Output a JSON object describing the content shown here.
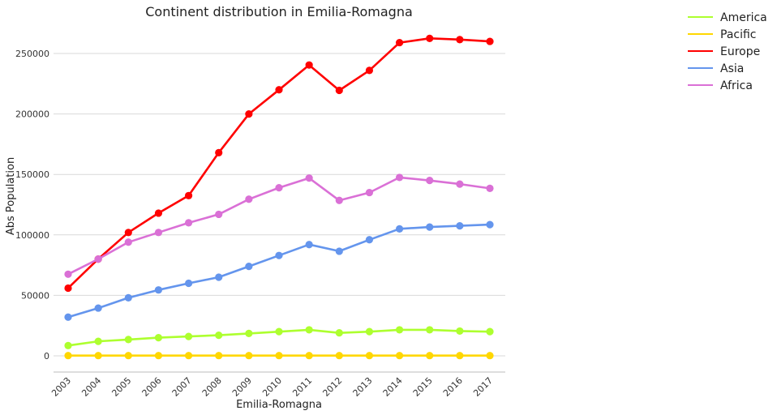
{
  "chart_data": {
    "type": "line",
    "title": "Continent distribution in Emilia-Romagna",
    "xlabel": "Emilia-Romagna",
    "ylabel": "Abs Population",
    "x": [
      "2003",
      "2004",
      "2005",
      "2006",
      "2007",
      "2008",
      "2009",
      "2010",
      "2011",
      "2012",
      "2013",
      "2014",
      "2015",
      "2016",
      "2017"
    ],
    "yticks": [
      "0",
      "50000",
      "100000",
      "150000",
      "200000",
      "250000"
    ],
    "ylim": [
      -13000,
      278000
    ],
    "grid": "horizontal",
    "legend_position": "outside-top-right",
    "series": [
      {
        "name": "America",
        "color": "#adff2f",
        "values": [
          8500,
          12000,
          13500,
          15000,
          16000,
          17000,
          18500,
          20000,
          21500,
          19000,
          20000,
          21500,
          21500,
          20500,
          20000
        ]
      },
      {
        "name": "Pacific",
        "color": "#ffd700",
        "values": [
          200,
          200,
          200,
          200,
          200,
          200,
          200,
          200,
          200,
          200,
          200,
          200,
          200,
          200,
          200
        ]
      },
      {
        "name": "Europe",
        "color": "#ff0000",
        "values": [
          56000,
          80000,
          102000,
          118000,
          132500,
          168000,
          200000,
          220000,
          240500,
          219500,
          236000,
          259000,
          262500,
          261500,
          260000
        ]
      },
      {
        "name": "Asia",
        "color": "#6495ed",
        "values": [
          32000,
          39500,
          48000,
          54500,
          60000,
          65000,
          74000,
          83000,
          92000,
          86500,
          96000,
          105000,
          106500,
          107500,
          108500
        ]
      },
      {
        "name": "Africa",
        "color": "#da70d6",
        "values": [
          67500,
          80000,
          94000,
          102000,
          110000,
          117000,
          129500,
          139000,
          147000,
          128500,
          135000,
          147500,
          145000,
          142000,
          138500
        ]
      }
    ]
  }
}
